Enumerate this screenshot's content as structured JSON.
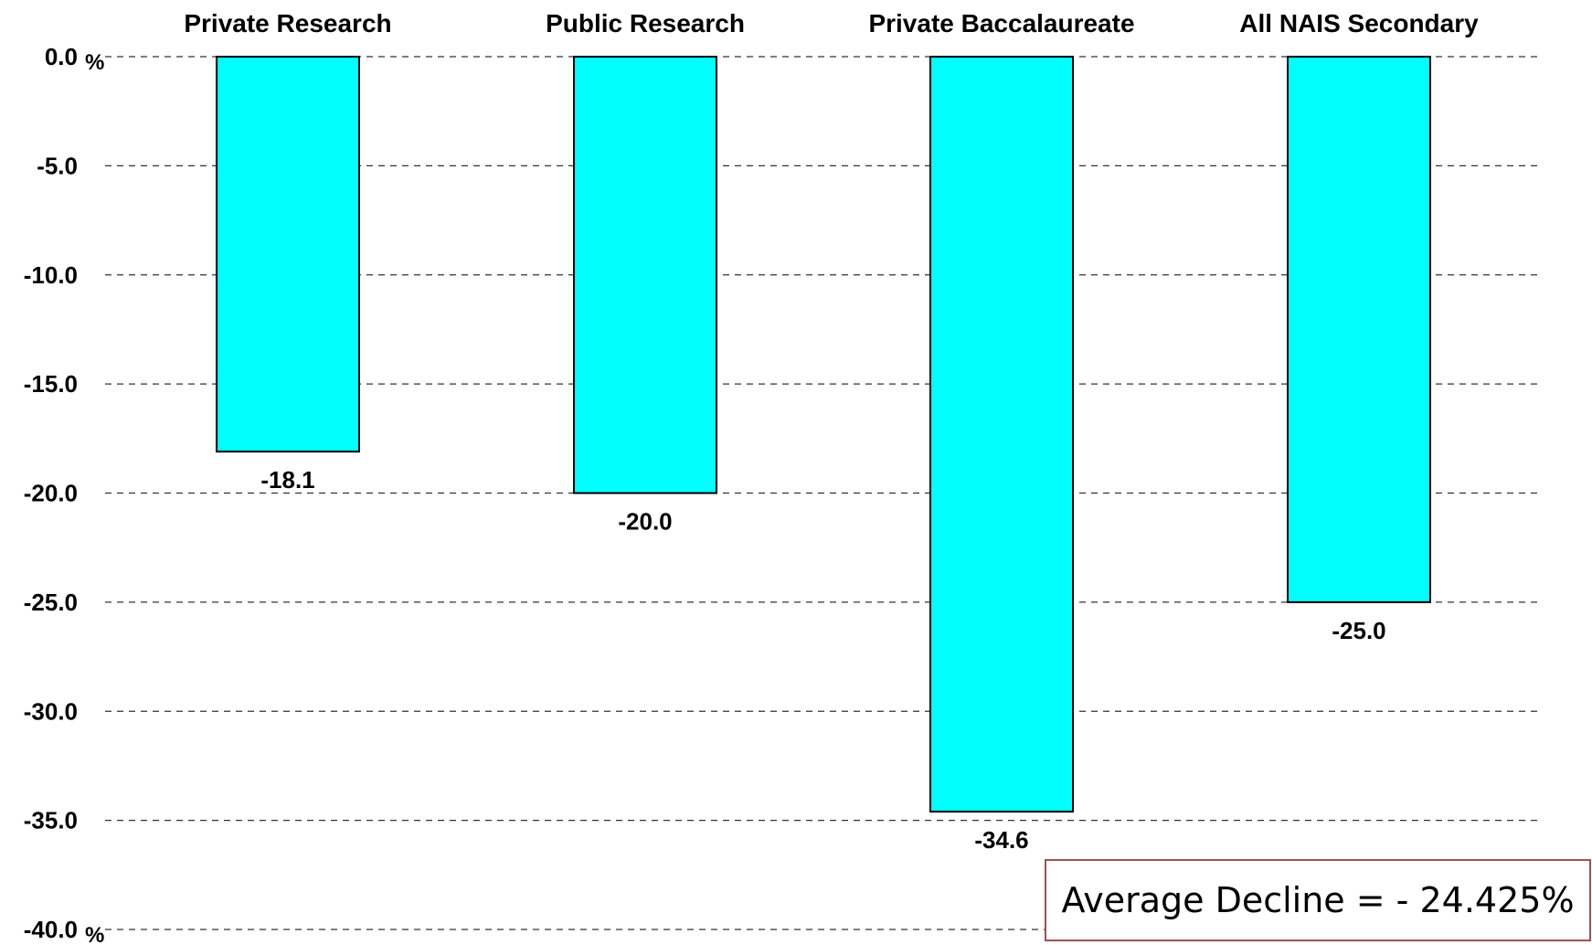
{
  "chart_data": {
    "type": "bar",
    "categories": [
      "Private Research",
      "Public Research",
      "Private Baccalaureate",
      "All NAIS Secondary"
    ],
    "values": [
      -18.1,
      -20.0,
      -34.6,
      -25.0
    ],
    "value_labels": [
      "-18.1",
      "-20.0",
      "-34.6",
      "-25.0"
    ],
    "ylim": [
      -40,
      0
    ],
    "yticks": [
      0,
      -5,
      -10,
      -15,
      -20,
      -25,
      -30,
      -35,
      -40
    ],
    "ytick_labels": [
      "0.0",
      "-5.0",
      "-10.0",
      "-15.0",
      "-20.0",
      "-25.0",
      "-30.0",
      "-35.0",
      "-40.0"
    ],
    "y_unit": "%",
    "grid": true,
    "category_axis_position": "top",
    "bar_color": "#00FFFF",
    "annotation": "Average Decline = - 24.425%"
  }
}
